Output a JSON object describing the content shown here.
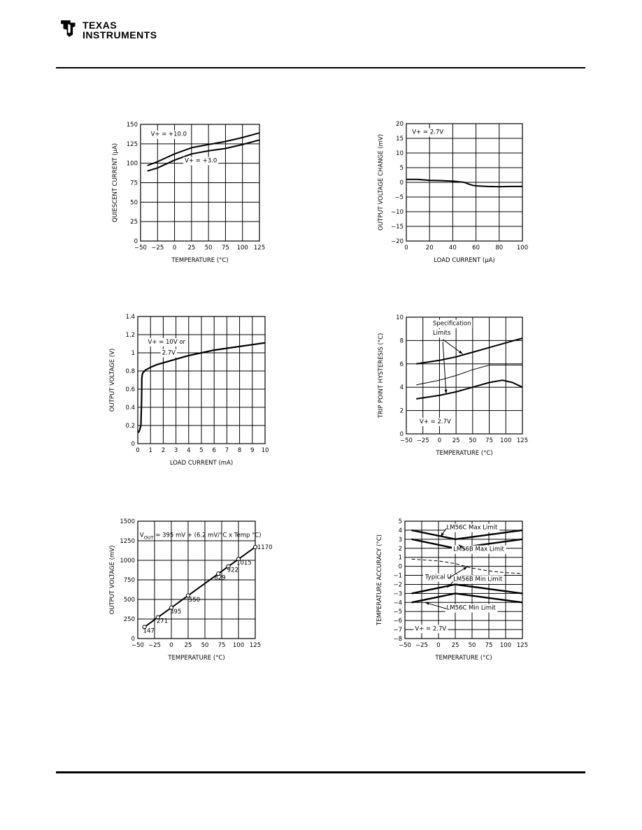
{
  "header": {
    "logo_line1": "TEXAS",
    "logo_line2": "INSTRUMENTS"
  },
  "chart_data": [
    {
      "type": "line",
      "xlabel": "TEMPERATURE (°C)",
      "ylabel": "QUIESCENT CURRENT (μA)",
      "xlim": [
        -50,
        125
      ],
      "ylim": [
        0,
        150
      ],
      "xticks": [
        -50,
        -25,
        0,
        25,
        50,
        75,
        100,
        125
      ],
      "yticks": [
        0,
        25,
        50,
        75,
        100,
        125,
        150
      ],
      "grid": true,
      "series": [
        {
          "name": "V+ = +10.0",
          "x": [
            -40,
            -25,
            0,
            25,
            50,
            75,
            100,
            125
          ],
          "y": [
            97,
            102,
            112,
            120,
            124,
            128,
            133,
            139
          ]
        },
        {
          "name": "V+ = +3.0",
          "x": [
            -40,
            -25,
            0,
            25,
            50,
            75,
            100,
            125
          ],
          "y": [
            90,
            94,
            104,
            112,
            116,
            119,
            124,
            130
          ]
        }
      ],
      "annotations": [
        "V+ = +10.0",
        "V+ = +3.0"
      ]
    },
    {
      "type": "line",
      "xlabel": "LOAD CURRENT (μA)",
      "ylabel": "OUTPUT VOLTAGE CHANGE (mV)",
      "xlim": [
        0,
        100
      ],
      "ylim": [
        -20,
        20
      ],
      "xticks": [
        0,
        20,
        40,
        60,
        80,
        100
      ],
      "yticks": [
        20,
        15,
        10,
        5,
        0,
        -5,
        -10,
        -15,
        -20
      ],
      "grid": true,
      "series": [
        {
          "x": [
            0,
            10,
            20,
            30,
            40,
            50,
            53,
            57,
            60,
            70,
            80,
            90,
            100
          ],
          "y": [
            1,
            1,
            0.7,
            0.6,
            0.4,
            0,
            -0.5,
            -1,
            -1.2,
            -1.4,
            -1.5,
            -1.4,
            -1.4
          ]
        }
      ],
      "annotations": [
        "V+ = 2.7V"
      ]
    },
    {
      "type": "line",
      "xlabel": "LOAD CURRENT (mA)",
      "ylabel": "OUTPUT VOLTAGE (V)",
      "xlim": [
        0,
        10
      ],
      "ylim": [
        0,
        1.4
      ],
      "xticks": [
        0,
        1,
        2,
        3,
        4,
        5,
        6,
        7,
        8,
        9,
        10
      ],
      "yticks": [
        "0",
        "0.2",
        "0.4",
        "0.6",
        "0.8",
        "1",
        "1.2",
        "1.4"
      ],
      "grid": true,
      "series": [
        {
          "x": [
            0.05,
            0.15,
            0.25,
            0.3,
            0.32,
            0.35,
            0.4,
            0.6,
            1,
            1.5,
            2,
            3,
            4,
            5,
            6,
            7,
            8,
            9,
            10
          ],
          "y": [
            0.12,
            0.15,
            0.2,
            0.5,
            0.72,
            0.76,
            0.78,
            0.81,
            0.84,
            0.87,
            0.89,
            0.93,
            0.97,
            1.0,
            1.03,
            1.05,
            1.07,
            1.09,
            1.11
          ]
        }
      ],
      "annotations": [
        "V+ = 10V or",
        "2.7V"
      ]
    },
    {
      "type": "line",
      "xlabel": "TEMPERATURE (°C)",
      "ylabel": "TRIP POINT HYSTERESIS (°C)",
      "xlim": [
        -50,
        125
      ],
      "ylim": [
        0,
        10
      ],
      "xticks": [
        -50,
        -25,
        0,
        25,
        50,
        75,
        100,
        125
      ],
      "yticks": [
        0,
        2,
        4,
        6,
        8,
        10
      ],
      "grid": true,
      "series": [
        {
          "x": [
            -35,
            0,
            25,
            50,
            75,
            100,
            125
          ],
          "y": [
            6,
            6.3,
            6.6,
            7.0,
            7.4,
            7.8,
            8.2
          ]
        },
        {
          "x": [
            -35,
            0,
            25,
            50,
            75,
            100,
            125
          ],
          "y": [
            4.2,
            4.6,
            5.0,
            5.5,
            5.9,
            5.9,
            5.9
          ]
        },
        {
          "x": [
            -35,
            0,
            25,
            50,
            75,
            95,
            110,
            125
          ],
          "y": [
            3.0,
            3.3,
            3.6,
            4.0,
            4.4,
            4.6,
            4.4,
            4.0
          ]
        }
      ],
      "annotations": [
        "Specification",
        "Limits",
        "V+ = 2.7V"
      ]
    },
    {
      "type": "line",
      "xlabel": "TEMPERATURE (°C)",
      "ylabel": "OUTPUT VOLTAGE (mV)",
      "xlim": [
        -50,
        125
      ],
      "ylim": [
        0,
        1500
      ],
      "xticks": [
        -50,
        -25,
        0,
        25,
        50,
        75,
        100,
        125
      ],
      "yticks": [
        0,
        250,
        500,
        750,
        1000,
        1250,
        1500
      ],
      "grid": true,
      "series": [
        {
          "x": [
            -40,
            -20,
            0,
            25,
            70,
            85,
            100,
            125
          ],
          "y": [
            147,
            271,
            395,
            550,
            829,
            922,
            1015,
            1170
          ]
        }
      ],
      "data_labels": [
        "147",
        "271",
        "395",
        "550",
        "829",
        "922",
        "1015",
        "1170"
      ],
      "annotation_main": "V",
      "annotation_sub": "OUT",
      "annotation_rest": " = 395 mV + (6.2 mV/°C x Temp °C)"
    },
    {
      "type": "line",
      "xlabel": "TEMPERATURE (°C)",
      "ylabel": "TEMPERATURE ACCURACY (°C)",
      "xlim": [
        -50,
        125
      ],
      "ylim": [
        -8,
        5
      ],
      "xticks": [
        -50,
        -25,
        0,
        25,
        50,
        75,
        100,
        125
      ],
      "yticks": [
        5,
        4,
        3,
        2,
        1,
        0,
        -1,
        -2,
        -3,
        -4,
        -5,
        -6,
        -7,
        -8
      ],
      "grid": true,
      "series": [
        {
          "name": "LM56C Max Limit",
          "x": [
            -40,
            25,
            125
          ],
          "y": [
            4,
            3,
            4
          ]
        },
        {
          "name": "LM56B Max Limit",
          "x": [
            -40,
            25,
            125
          ],
          "y": [
            3,
            2,
            3
          ]
        },
        {
          "name": "Typical Unit",
          "x": [
            -40,
            0,
            25,
            50,
            75,
            100,
            125
          ],
          "y": [
            0.8,
            0.6,
            0.3,
            -0.2,
            -0.5,
            -0.7,
            -0.8
          ]
        },
        {
          "name": "LM56B Min Limit",
          "x": [
            -40,
            25,
            125
          ],
          "y": [
            -3,
            -2,
            -3
          ]
        },
        {
          "name": "LM56C Min Limit",
          "x": [
            -40,
            25,
            125
          ],
          "y": [
            -4,
            -3,
            -4
          ]
        }
      ],
      "annotations": [
        "LM56C Max Limit",
        "LM56B Max Limit",
        "Typical Unit",
        "LM56B Min Limit",
        "LM56C Min Limit",
        "V+ = 2.7V"
      ]
    }
  ]
}
